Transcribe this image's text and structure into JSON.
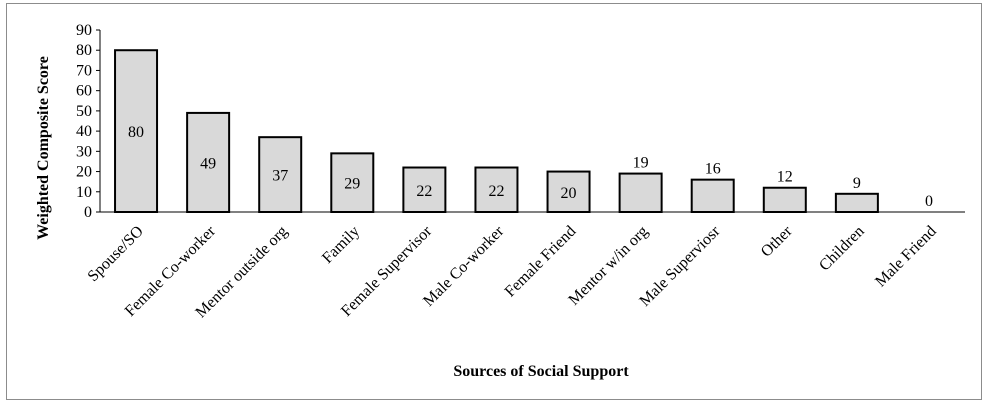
{
  "chart_data": {
    "type": "bar",
    "title": "",
    "xlabel": "Sources of Social Support",
    "ylabel": "Weighted Composite Score",
    "ylim": [
      0,
      90
    ],
    "y_ticks": [
      0,
      10,
      20,
      30,
      40,
      50,
      60,
      70,
      80,
      90
    ],
    "grid": false,
    "legend": "none",
    "categories": [
      "Spouse/SO",
      "Female Co-worker",
      "Mentor outside org",
      "Family",
      "Female Supervisor",
      "Male Co-worker",
      "Female Friend",
      "Mentor w/in org",
      "Male Superviosr",
      "Other",
      "Children",
      "Male Friend"
    ],
    "values": [
      80,
      49,
      37,
      29,
      22,
      22,
      20,
      19,
      16,
      12,
      9,
      0
    ],
    "data_labels": [
      "80",
      "49",
      "37",
      "29",
      "22",
      "22",
      "20",
      "19",
      "16",
      "12",
      "9",
      "0"
    ],
    "bar_color": "#d9d9d9",
    "bar_edge_color": "#000000"
  }
}
